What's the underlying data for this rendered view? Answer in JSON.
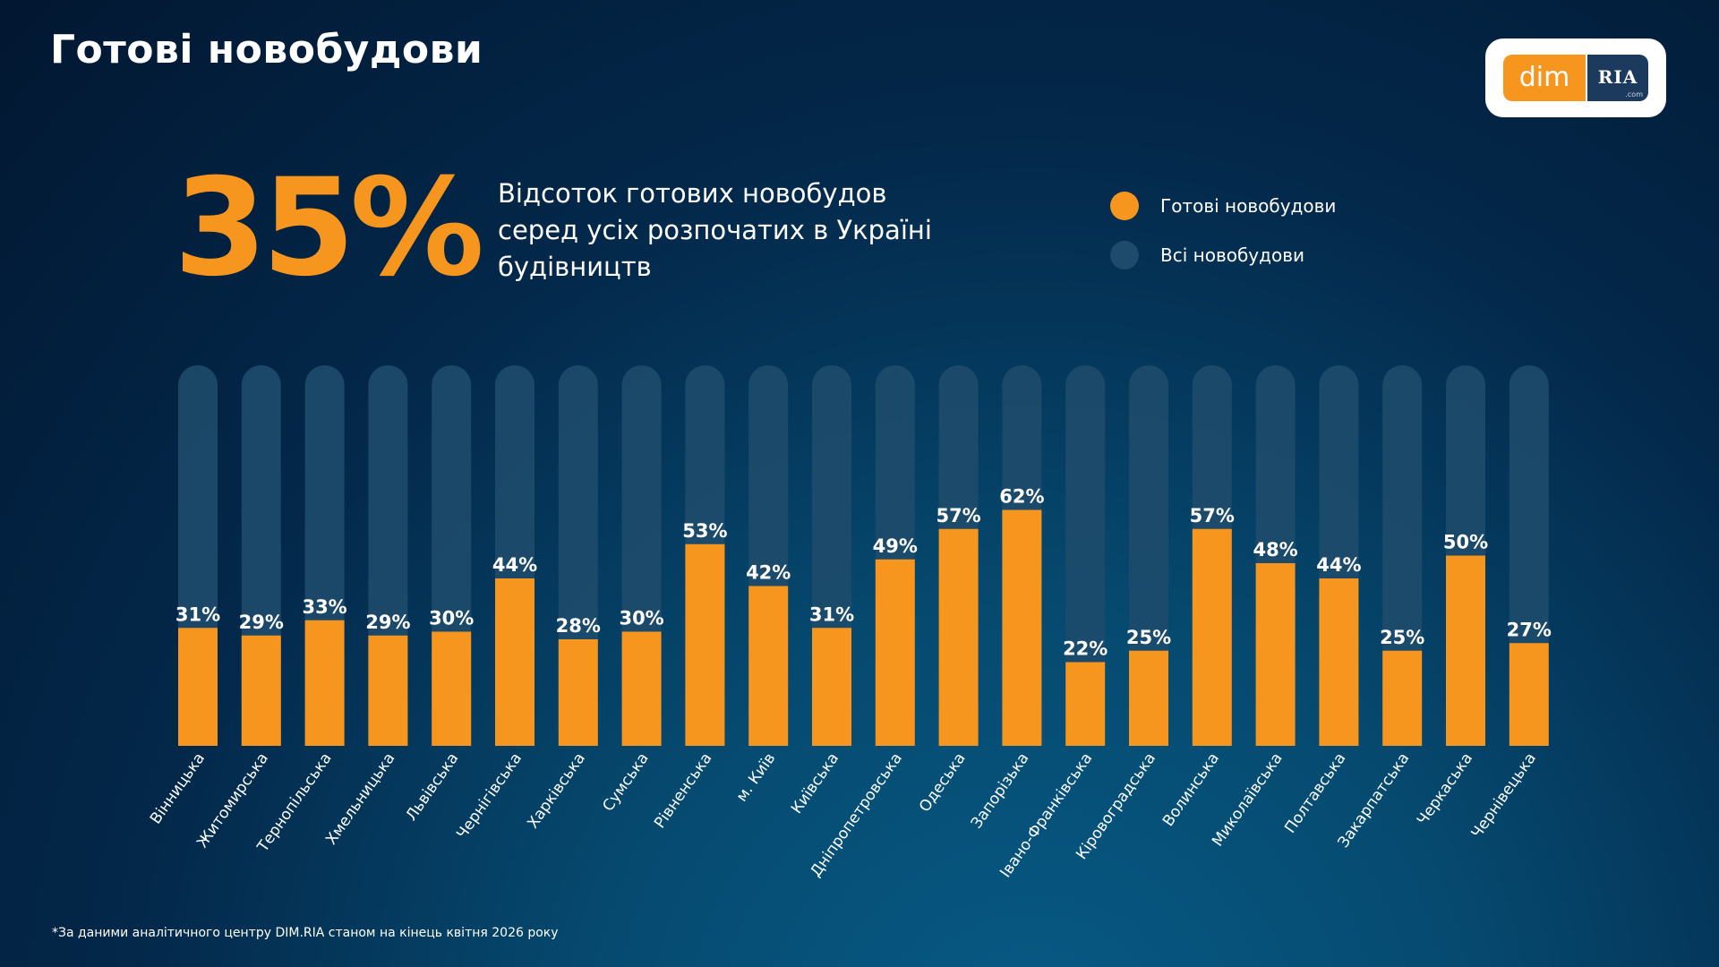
{
  "header": {
    "title": "Готові новобудови"
  },
  "logo": {
    "dim": "dim",
    "ria": "RIA",
    "com": ".com"
  },
  "summary": {
    "value": "35%",
    "description_lines": [
      "Відсоток готових новобудов",
      "серед усіх розпочатих в Україні",
      "будівництв"
    ]
  },
  "legend": {
    "items": [
      {
        "label": "Готові новобудови",
        "color": "#f6961f"
      },
      {
        "label": "Всі новобудови",
        "color": "#1e4b6b"
      }
    ]
  },
  "chart_data": {
    "type": "bar",
    "categories": [
      "Вінницька",
      "Житомирська",
      "Тернопільська",
      "Хмельницька",
      "Львівська",
      "Чернігівська",
      "Харківська",
      "Сумська",
      "Рівненська",
      "м. Київ",
      "Київська",
      "Дніпропетровська",
      "Одеська",
      "Запорізька",
      "Івано-Франківська",
      "Кіровоградська",
      "Волинська",
      "Миколаївська",
      "Полтавська",
      "Закарпатська",
      "Черкаська",
      "Чернівецька"
    ],
    "series": [
      {
        "name": "Всі новобудови",
        "values": [
          100,
          100,
          100,
          100,
          100,
          100,
          100,
          100,
          100,
          100,
          100,
          100,
          100,
          100,
          100,
          100,
          100,
          100,
          100,
          100,
          100,
          100
        ],
        "color": "#1e4b6b"
      },
      {
        "name": "Готові новобудови",
        "values": [
          31,
          29,
          33,
          29,
          30,
          44,
          28,
          30,
          53,
          42,
          31,
          49,
          57,
          62,
          22,
          25,
          57,
          48,
          44,
          25,
          50,
          27
        ],
        "color": "#f6961f"
      }
    ],
    "value_labels": [
      "31%",
      "29%",
      "33%",
      "29%",
      "30%",
      "44%",
      "28%",
      "30%",
      "53%",
      "42%",
      "31%",
      "49%",
      "57%",
      "62%",
      "22%",
      "25%",
      "57%",
      "48%",
      "44%",
      "25%",
      "50%",
      "27%"
    ],
    "ylim": [
      0,
      100
    ],
    "grid": false,
    "legend_position": "top-right"
  },
  "footnote": "*За даними аналітичного центру DIM.RIA станом на кінець квітня 2026 року"
}
